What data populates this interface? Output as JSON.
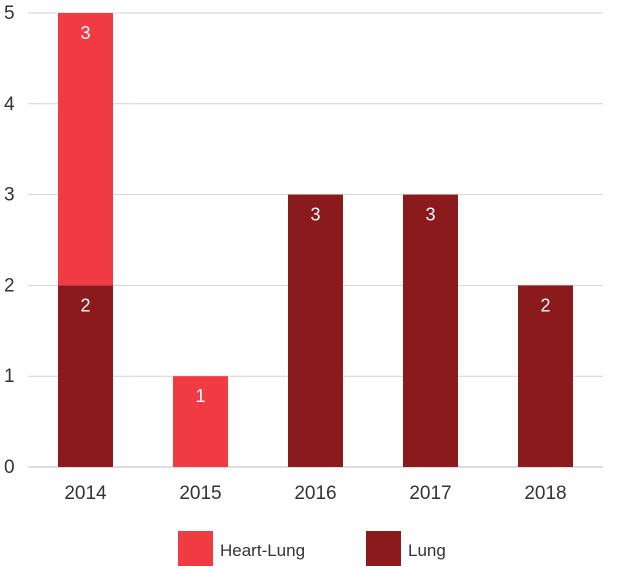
{
  "chart_data": {
    "type": "bar",
    "stacked": true,
    "categories": [
      "2014",
      "2015",
      "2016",
      "2017",
      "2018"
    ],
    "series": [
      {
        "name": "Lung",
        "values": [
          2,
          0,
          3,
          3,
          2
        ],
        "color": "#8b1a1d"
      },
      {
        "name": "Heart-Lung",
        "values": [
          3,
          1,
          0,
          0,
          0
        ],
        "color": "#ef3b41"
      }
    ],
    "ylim": [
      0,
      5
    ],
    "yticks": [
      0,
      1,
      2,
      3,
      4,
      5
    ],
    "grid": true,
    "legend_position": "bottom-center",
    "legend_order": [
      "Heart-Lung",
      "Lung"
    ],
    "data_labels": true
  }
}
